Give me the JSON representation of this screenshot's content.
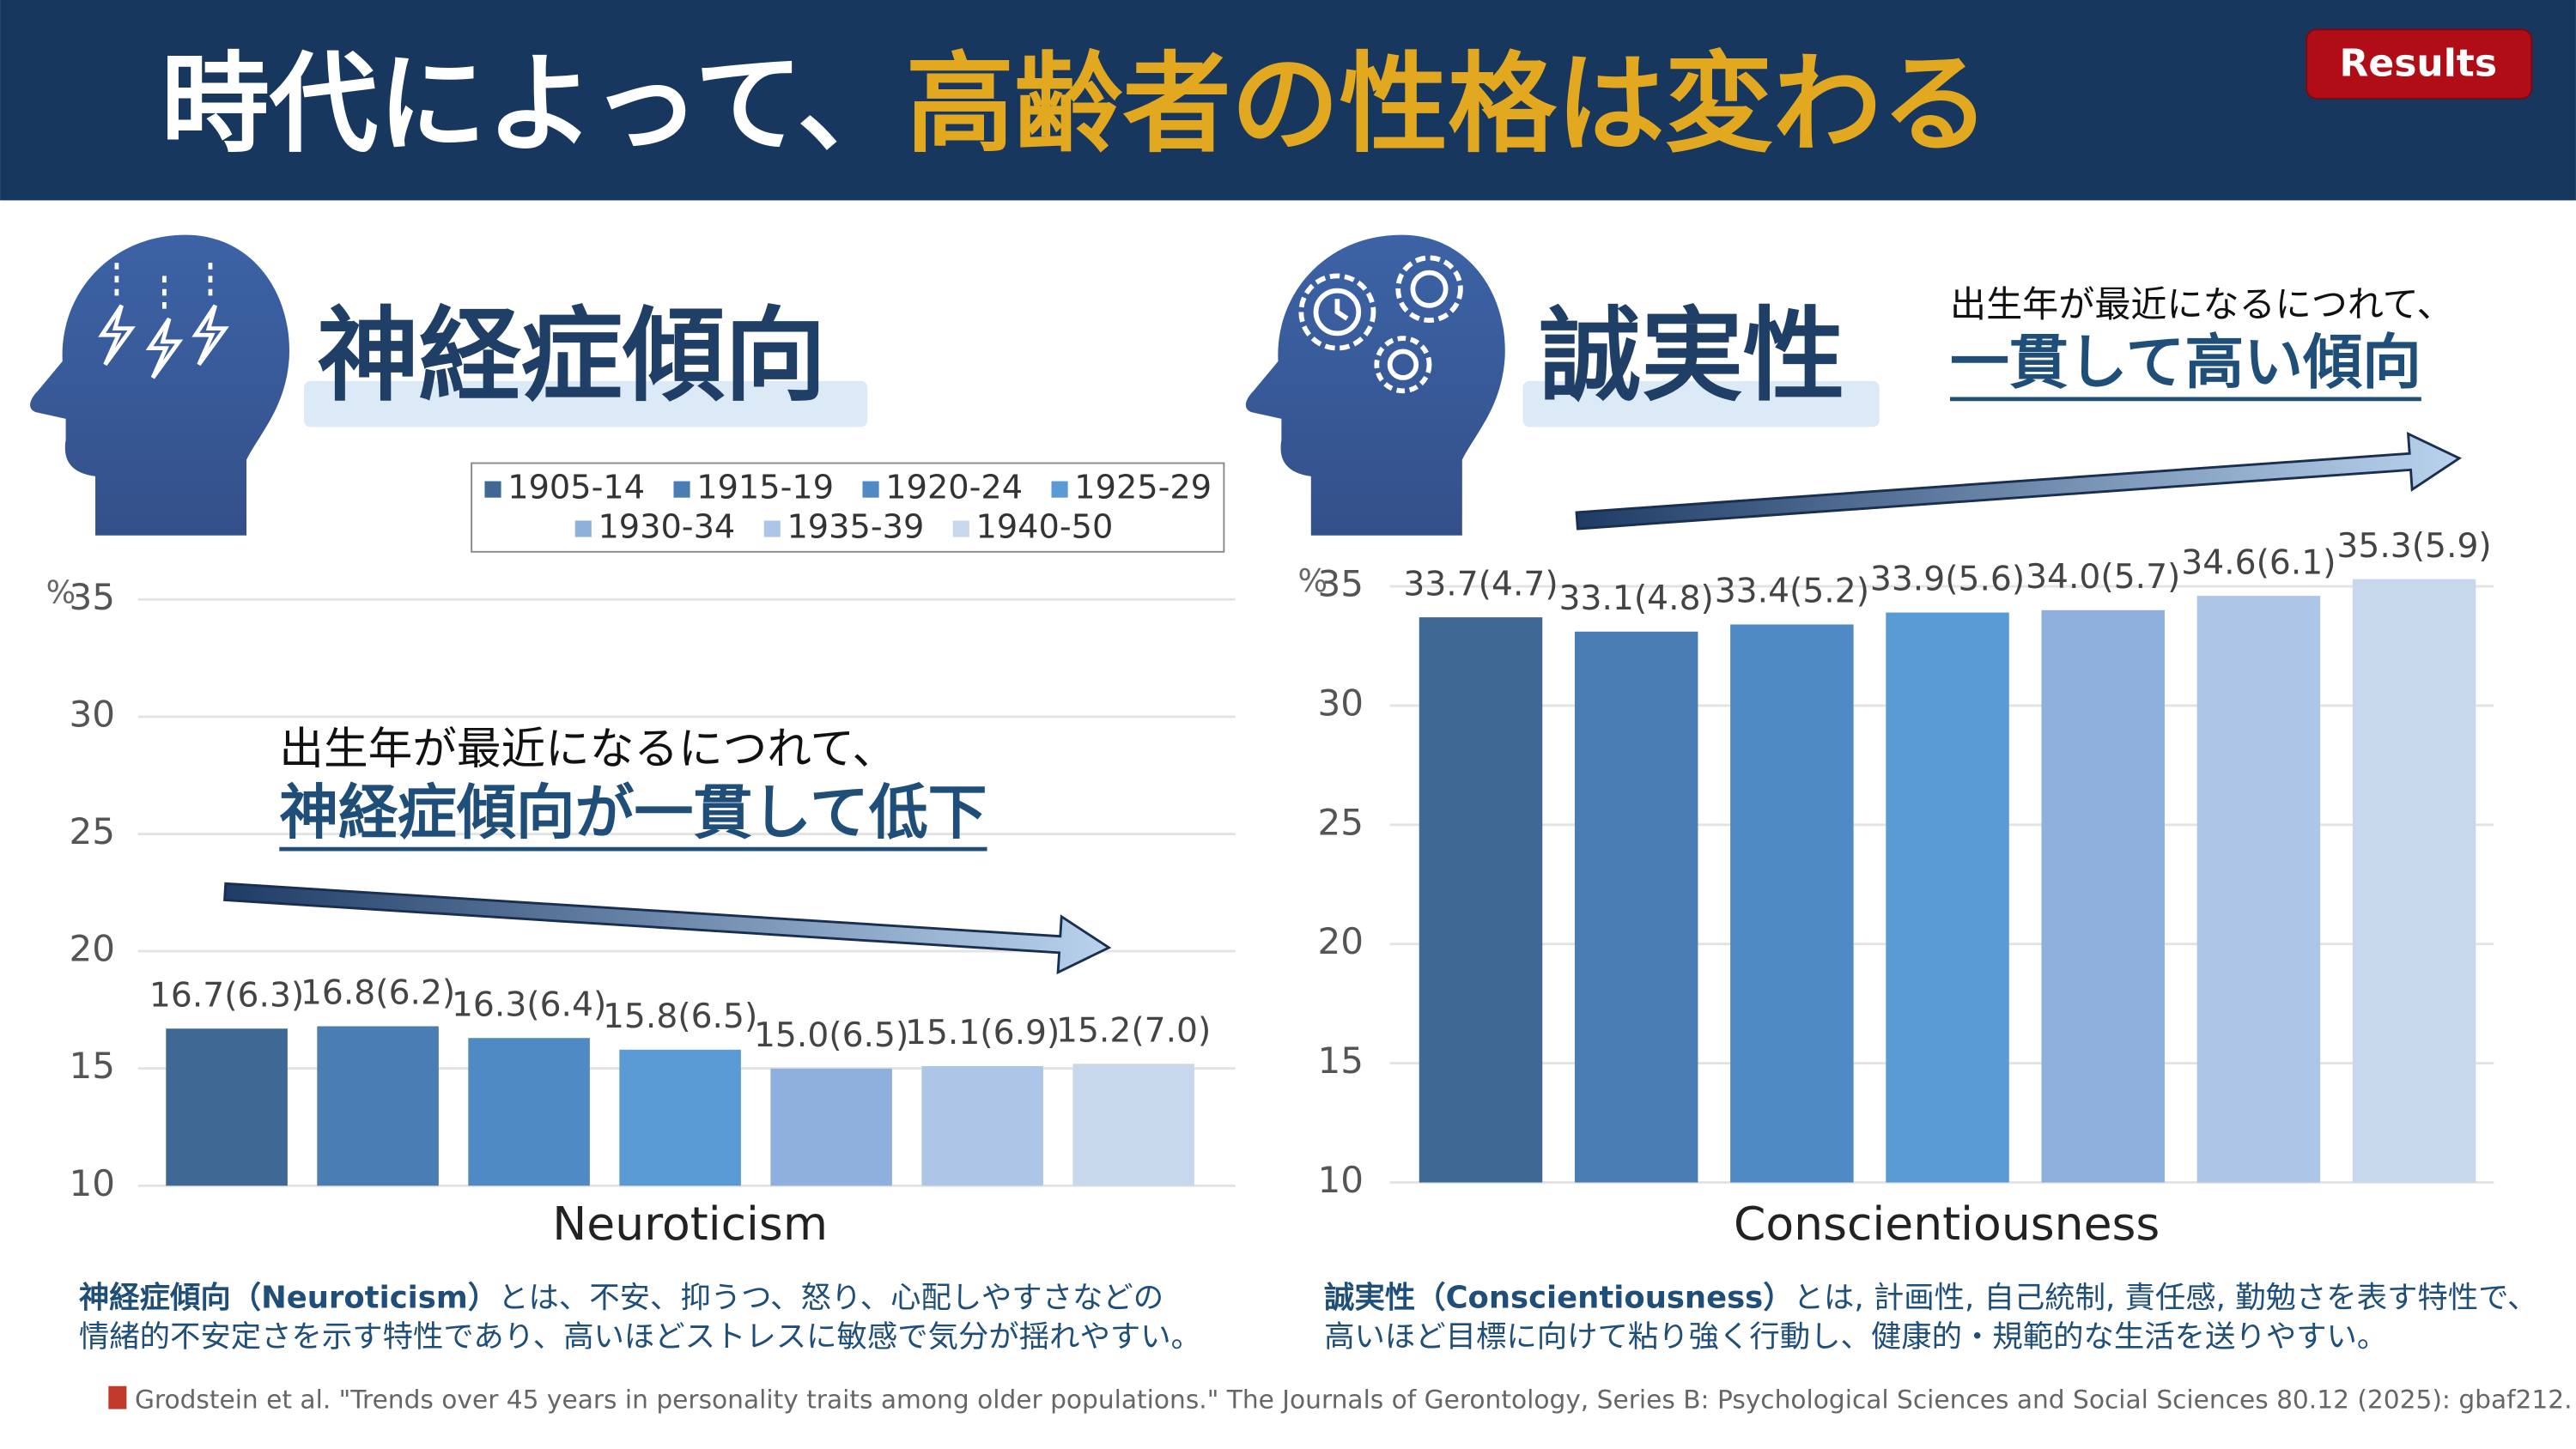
{
  "header": {
    "title_white": "時代によって、",
    "title_gold": "高齢者の性格は変わる",
    "badge": "Results"
  },
  "footnote": "Grodstein et al. \"Trends over 45 years in personality traits among older populations.\" The Journals of Gerontology, Series B: Psychological Sciences and Social Sciences 80.12 (2025): gbaf212.",
  "chart_data": [
    {
      "type": "bar",
      "title": "神経症傾向",
      "annotation": [
        "出生年が最近になるにつれて、",
        "神経症傾向が一貫して低下"
      ],
      "x_label": "Neuroticism",
      "y_unit": "%",
      "categories": [
        "1905-14",
        "1915-19",
        "1920-24",
        "1925-29",
        "1930-34",
        "1935-39",
        "1940-50"
      ],
      "values": [
        16.7,
        16.8,
        16.3,
        15.8,
        15.0,
        15.1,
        15.2
      ],
      "value_labels": [
        "16.7(6.3)",
        "16.8(6.2)",
        "16.3(6.4)",
        "15.8(6.5)",
        "15.0(6.5)",
        "15.1(6.9)",
        "15.2(7.0)"
      ],
      "colors": [
        "#3f6894",
        "#4a7db3",
        "#4f8ac4",
        "#5b9bd5",
        "#8fb0dd",
        "#adc6e8",
        "#c8d8ec"
      ],
      "ylim": [
        10,
        35
      ],
      "yticks": [
        10,
        15,
        20,
        25,
        30,
        35
      ],
      "grid": true,
      "legend": true,
      "term": "神経症傾向（Neuroticism）",
      "description": [
        "とは、不安、抑うつ、怒り、心配しやすさなどの",
        "情緒的不安定さを示す特性であり、高いほどストレスに敏感で気分が揺れやすい。"
      ]
    },
    {
      "type": "bar",
      "title": "誠実性",
      "annotation": [
        "出生年が最近になるにつれて、",
        "一貫して高い傾向"
      ],
      "x_label": "Conscientiousness",
      "y_unit": "%",
      "values": [
        33.7,
        33.1,
        33.4,
        33.9,
        34.0,
        34.6,
        35.3
      ],
      "value_labels": [
        "33.7(4.7)",
        "33.1(4.8)",
        "33.4(5.2)",
        "33.9(5.6)",
        "34.0(5.7)",
        "34.6(6.1)",
        "35.3(5.9)"
      ],
      "colors": [
        "#3f6894",
        "#4a7db3",
        "#4f8ac4",
        "#5b9bd5",
        "#8fb0dd",
        "#adc6e8",
        "#c8d8ec"
      ],
      "ylim": [
        10,
        35
      ],
      "yticks": [
        10,
        15,
        20,
        25,
        30,
        35
      ],
      "grid": true,
      "legend": false,
      "term": "誠実性（Conscientiousness）",
      "description": [
        "とは, 計画性, 自己統制, 責任感, 勤勉さを表す特性で、",
        "高いほど目標に向けて粘り強く行動し、健康的・規範的な生活を送りやすい。"
      ]
    }
  ]
}
